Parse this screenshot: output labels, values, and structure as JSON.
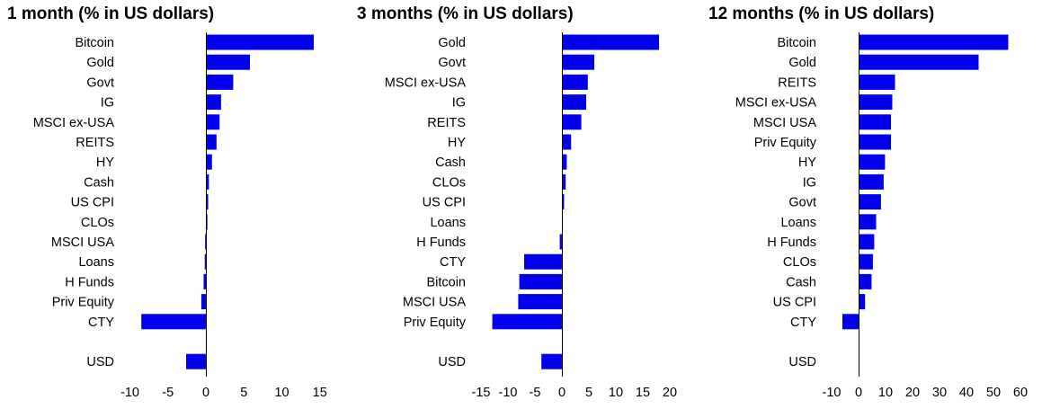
{
  "chart_data": [
    {
      "type": "bar",
      "orientation": "horizontal",
      "title": "1 month (% in US dollars)",
      "xlabel": "",
      "ylabel": "",
      "xlim": [
        -12,
        16
      ],
      "xticks": [
        -10,
        -5,
        0,
        5,
        10,
        15
      ],
      "grid": false,
      "bar_color": "#0000ee",
      "categories": [
        "Bitcoin",
        "Gold",
        "Govt",
        "IG",
        "MSCI ex-USA",
        "REITS",
        "HY",
        "Cash",
        "US CPI",
        "CLOs",
        "MSCI USA",
        "Loans",
        "H Funds",
        "Priv Equity",
        "CTY",
        "",
        "USD"
      ],
      "values": [
        14.2,
        5.8,
        3.6,
        2.0,
        1.8,
        1.4,
        0.8,
        0.4,
        0.3,
        0.2,
        -0.1,
        -0.15,
        -0.3,
        -0.6,
        -8.5,
        null,
        -2.6
      ]
    },
    {
      "type": "bar",
      "orientation": "horizontal",
      "title": "3 months (% in US dollars)",
      "xlabel": "",
      "ylabel": "",
      "xlim": [
        -17,
        22
      ],
      "xticks": [
        -15,
        -10,
        -5,
        0,
        5,
        10,
        15,
        20
      ],
      "grid": false,
      "bar_color": "#0000ee",
      "categories": [
        "Gold",
        "Govt",
        "MSCI ex-USA",
        "IG",
        "REITS",
        "HY",
        "Cash",
        "CLOs",
        "US CPI",
        "Loans",
        "H Funds",
        "CTY",
        "Bitcoin",
        "MSCI USA",
        "Priv Equity",
        "",
        "USD"
      ],
      "values": [
        18.0,
        6.0,
        4.8,
        4.5,
        3.6,
        1.7,
        0.9,
        0.7,
        0.4,
        0.0,
        -0.4,
        -7.0,
        -7.9,
        -8.1,
        -12.9,
        null,
        -3.8
      ]
    },
    {
      "type": "bar",
      "orientation": "horizontal",
      "title": "12 months (% in US dollars)",
      "xlabel": "",
      "ylabel": "",
      "xlim": [
        -15,
        62
      ],
      "xticks": [
        -10,
        0,
        10,
        20,
        30,
        40,
        50,
        60
      ],
      "grid": false,
      "bar_color": "#0000ee",
      "categories": [
        "Bitcoin",
        "Gold",
        "REITS",
        "MSCI ex-USA",
        "MSCI USA",
        "Priv Equity",
        "HY",
        "IG",
        "Govt",
        "Loans",
        "H Funds",
        "CLOs",
        "Cash",
        "US CPI",
        "CTY",
        "",
        "USD"
      ],
      "values": [
        55.5,
        44.5,
        13.5,
        12.5,
        12.0,
        12.0,
        9.8,
        9.3,
        8.3,
        6.5,
        5.8,
        5.3,
        4.8,
        2.4,
        -6.0,
        null,
        0.0
      ]
    }
  ]
}
